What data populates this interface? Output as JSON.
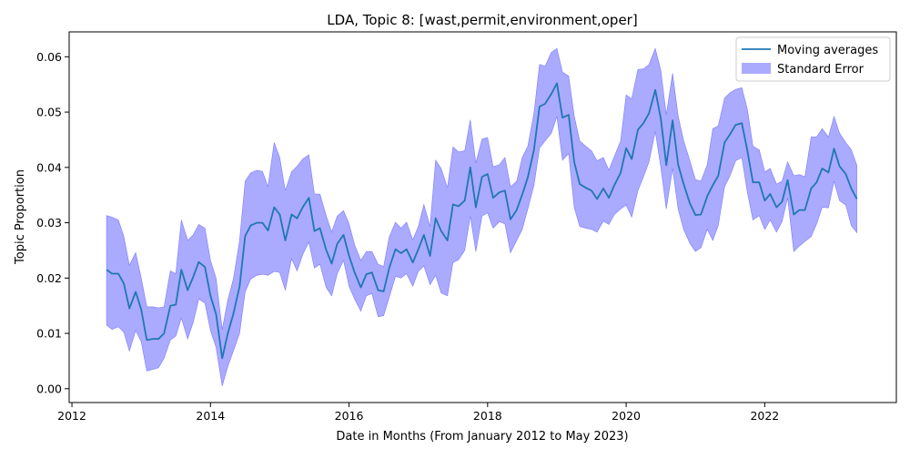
{
  "chart_data": {
    "type": "line",
    "title": "LDA, Topic 8: [wast,permit,environment,oper]",
    "xlabel": "Date in Months (From January 2012 to May 2023)",
    "ylabel": "Topic Proportion",
    "xlim": [
      2011.96,
      2023.9
    ],
    "ylim": [
      -0.0025,
      0.0645
    ],
    "x_ticks": [
      2012,
      2014,
      2016,
      2018,
      2020,
      2022
    ],
    "x_tick_labels": [
      "2012",
      "2014",
      "2016",
      "2018",
      "2020",
      "2022"
    ],
    "y_ticks": [
      0.0,
      0.01,
      0.02,
      0.03,
      0.04,
      0.05,
      0.06
    ],
    "y_tick_labels": [
      "0.00",
      "0.01",
      "0.02",
      "0.03",
      "0.04",
      "0.05",
      "0.06"
    ],
    "grid": false,
    "legend_position": "top-right",
    "legend": [
      "Moving averages",
      "Standard Error"
    ],
    "series": [
      {
        "name": "Moving averages",
        "color": "#1f77b4",
        "x": [
          2012.5,
          2012.58,
          2012.67,
          2012.75,
          2012.83,
          2012.92,
          2013.0,
          2013.08,
          2013.17,
          2013.25,
          2013.33,
          2013.42,
          2013.5,
          2013.58,
          2013.67,
          2013.75,
          2013.83,
          2013.92,
          2014.0,
          2014.08,
          2014.17,
          2014.25,
          2014.33,
          2014.42,
          2014.5,
          2014.58,
          2014.67,
          2014.75,
          2014.83,
          2014.92,
          2015.0,
          2015.08,
          2015.17,
          2015.25,
          2015.33,
          2015.42,
          2015.5,
          2015.58,
          2015.67,
          2015.75,
          2015.83,
          2015.92,
          2016.0,
          2016.08,
          2016.17,
          2016.25,
          2016.33,
          2016.42,
          2016.5,
          2016.58,
          2016.67,
          2016.75,
          2016.83,
          2016.92,
          2017.0,
          2017.08,
          2017.17,
          2017.25,
          2017.33,
          2017.42,
          2017.5,
          2017.58,
          2017.67,
          2017.75,
          2017.83,
          2017.92,
          2018.0,
          2018.08,
          2018.17,
          2018.25,
          2018.33,
          2018.42,
          2018.5,
          2018.58,
          2018.67,
          2018.75,
          2018.83,
          2018.92,
          2019.0,
          2019.08,
          2019.17,
          2019.25,
          2019.33,
          2019.42,
          2019.5,
          2019.58,
          2019.67,
          2019.75,
          2019.83,
          2019.92,
          2020.0,
          2020.08,
          2020.17,
          2020.25,
          2020.33,
          2020.42,
          2020.5,
          2020.58,
          2020.67,
          2020.75,
          2020.83,
          2020.92,
          2021.0,
          2021.08,
          2021.17,
          2021.25,
          2021.33,
          2021.42,
          2021.5,
          2021.58,
          2021.67,
          2021.75,
          2021.83,
          2021.92,
          2022.0,
          2022.08,
          2022.17,
          2022.25,
          2022.33,
          2022.42,
          2022.5,
          2022.58,
          2022.67,
          2022.75,
          2022.83,
          2022.92,
          2023.0,
          2023.08,
          2023.17,
          2023.25,
          2023.33
        ],
        "values": [
          0.0215,
          0.0208,
          0.0208,
          0.019,
          0.0145,
          0.0175,
          0.0143,
          0.0088,
          0.009,
          0.009,
          0.01,
          0.015,
          0.0152,
          0.0215,
          0.0178,
          0.0202,
          0.0229,
          0.022,
          0.0168,
          0.0135,
          0.0055,
          0.01,
          0.0135,
          0.0185,
          0.0276,
          0.0295,
          0.03,
          0.03,
          0.0286,
          0.0328,
          0.0315,
          0.0268,
          0.0315,
          0.0308,
          0.0328,
          0.0345,
          0.0285,
          0.029,
          0.0251,
          0.0226,
          0.0262,
          0.0278,
          0.024,
          0.021,
          0.0183,
          0.0207,
          0.021,
          0.0178,
          0.0176,
          0.0218,
          0.0252,
          0.0245,
          0.0252,
          0.0228,
          0.0252,
          0.0278,
          0.024,
          0.0308,
          0.0285,
          0.0268,
          0.0333,
          0.033,
          0.034,
          0.04,
          0.0328,
          0.0383,
          0.0388,
          0.0345,
          0.0355,
          0.0358,
          0.0306,
          0.0323,
          0.0351,
          0.0382,
          0.0432,
          0.051,
          0.0515,
          0.0533,
          0.0552,
          0.049,
          0.0495,
          0.041,
          0.037,
          0.0363,
          0.0358,
          0.0343,
          0.0362,
          0.0345,
          0.0368,
          0.039,
          0.0435,
          0.0415,
          0.0468,
          0.048,
          0.0498,
          0.054,
          0.0488,
          0.0404,
          0.0485,
          0.0405,
          0.037,
          0.0335,
          0.0314,
          0.0315,
          0.0348,
          0.0368,
          0.0385,
          0.0445,
          0.046,
          0.0477,
          0.048,
          0.043,
          0.0373,
          0.0373,
          0.034,
          0.0352,
          0.0328,
          0.0338,
          0.0377,
          0.0315,
          0.0323,
          0.0323,
          0.0362,
          0.0373,
          0.0398,
          0.0391,
          0.0434,
          0.0402,
          0.0388,
          0.0362,
          0.0343
        ]
      },
      {
        "name": "Standard Error",
        "color": "#aaaaff",
        "upper": [
          0.0313,
          0.031,
          0.0305,
          0.0275,
          0.0223,
          0.0246,
          0.02,
          0.0148,
          0.0148,
          0.0146,
          0.0148,
          0.0213,
          0.0208,
          0.0305,
          0.0268,
          0.0278,
          0.0297,
          0.029,
          0.0232,
          0.02,
          0.0107,
          0.016,
          0.0198,
          0.0268,
          0.0375,
          0.039,
          0.0395,
          0.0393,
          0.0365,
          0.0445,
          0.0418,
          0.0358,
          0.0392,
          0.0402,
          0.0415,
          0.0423,
          0.0352,
          0.0352,
          0.0313,
          0.0283,
          0.0312,
          0.0322,
          0.0298,
          0.026,
          0.0232,
          0.0248,
          0.0248,
          0.0225,
          0.0221,
          0.0274,
          0.0301,
          0.029,
          0.0301,
          0.0269,
          0.0293,
          0.0333,
          0.0293,
          0.0413,
          0.0398,
          0.0363,
          0.0437,
          0.0428,
          0.043,
          0.0486,
          0.0408,
          0.0451,
          0.0454,
          0.0401,
          0.0405,
          0.0418,
          0.0365,
          0.0375,
          0.0418,
          0.0438,
          0.0498,
          0.0586,
          0.0583,
          0.0608,
          0.0615,
          0.0572,
          0.0565,
          0.0493,
          0.0448,
          0.0438,
          0.043,
          0.0412,
          0.0418,
          0.0395,
          0.042,
          0.0448,
          0.0531,
          0.0524,
          0.0577,
          0.0578,
          0.0586,
          0.0615,
          0.0575,
          0.0495,
          0.057,
          0.0493,
          0.0448,
          0.0412,
          0.0378,
          0.0375,
          0.0405,
          0.047,
          0.0475,
          0.0525,
          0.0535,
          0.0541,
          0.0544,
          0.0505,
          0.0438,
          0.0432,
          0.0392,
          0.0398,
          0.037,
          0.0375,
          0.041,
          0.0385,
          0.0387,
          0.0383,
          0.0455,
          0.0455,
          0.047,
          0.0455,
          0.0492,
          0.0462,
          0.0445,
          0.0432,
          0.0404
        ],
        "lower": [
          0.0115,
          0.0107,
          0.0112,
          0.0102,
          0.0068,
          0.0105,
          0.0085,
          0.0032,
          0.0035,
          0.0038,
          0.0055,
          0.0088,
          0.0095,
          0.0128,
          0.009,
          0.012,
          0.0162,
          0.0155,
          0.0105,
          0.0075,
          0.0005,
          0.004,
          0.0068,
          0.01,
          0.0175,
          0.0198,
          0.0205,
          0.0207,
          0.0205,
          0.0212,
          0.021,
          0.0178,
          0.0235,
          0.0213,
          0.0242,
          0.0265,
          0.0218,
          0.0225,
          0.0183,
          0.0168,
          0.0208,
          0.0232,
          0.0185,
          0.0162,
          0.014,
          0.0168,
          0.0172,
          0.013,
          0.0132,
          0.0165,
          0.0203,
          0.02,
          0.0208,
          0.0185,
          0.0212,
          0.0222,
          0.0188,
          0.0205,
          0.0173,
          0.0168,
          0.0228,
          0.0233,
          0.025,
          0.0312,
          0.0248,
          0.0312,
          0.0318,
          0.029,
          0.0302,
          0.0298,
          0.0246,
          0.0268,
          0.0288,
          0.0325,
          0.0368,
          0.0435,
          0.0448,
          0.0462,
          0.0492,
          0.0413,
          0.0425,
          0.0328,
          0.0293,
          0.029,
          0.0288,
          0.0283,
          0.0303,
          0.0297,
          0.0315,
          0.0325,
          0.0332,
          0.031,
          0.0358,
          0.0383,
          0.041,
          0.0465,
          0.04,
          0.0325,
          0.0398,
          0.0325,
          0.0288,
          0.0263,
          0.0248,
          0.0255,
          0.0288,
          0.0268,
          0.0295,
          0.0365,
          0.0385,
          0.0412,
          0.0418,
          0.0355,
          0.0305,
          0.0313,
          0.0288,
          0.0305,
          0.0283,
          0.0302,
          0.0345,
          0.0248,
          0.0258,
          0.0266,
          0.0275,
          0.0298,
          0.0328,
          0.0327,
          0.0375,
          0.034,
          0.0332,
          0.0295,
          0.0282
        ]
      }
    ]
  }
}
